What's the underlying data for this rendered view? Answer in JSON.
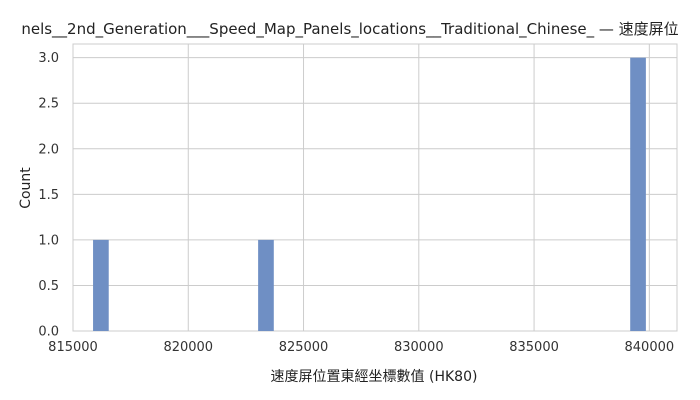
{
  "chart_data": {
    "type": "bar",
    "title": "nels__2nd_Generation___Speed_Map_Panels_locations__Traditional_Chinese_ — 速度屏位",
    "xlabel": "速度屏位置東經坐標數值 (HK80)",
    "ylabel": "Count",
    "xlim": [
      815000,
      841200
    ],
    "ylim": [
      0,
      3.15
    ],
    "x_ticks": [
      815000,
      820000,
      825000,
      830000,
      835000,
      840000
    ],
    "x_tick_labels": [
      "815000",
      "820000",
      "825000",
      "830000",
      "835000",
      "840000"
    ],
    "y_ticks": [
      0,
      0.5,
      1,
      1.5,
      2,
      2.5,
      3
    ],
    "y_tick_labels": [
      "0.0",
      "0.5",
      "1.0",
      "1.5",
      "2.0",
      "2.5",
      "3.0"
    ],
    "bins": [
      {
        "x0": 815870,
        "x1": 816550,
        "count": 1
      },
      {
        "x0": 823030,
        "x1": 823710,
        "count": 1
      },
      {
        "x0": 839170,
        "x1": 839850,
        "count": 3
      }
    ],
    "grid": true,
    "bar_color": "#6f8fc4"
  }
}
